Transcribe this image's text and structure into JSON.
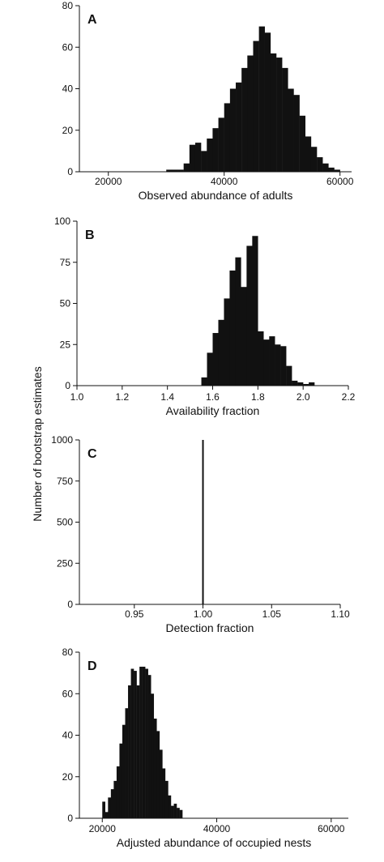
{
  "figure": {
    "shared_ylabel": "Number of bootstrap estimates"
  },
  "chart_data": [
    {
      "type": "bar",
      "panel_label": "A",
      "xlabel": "Observed abundance of adults",
      "xlim": [
        15000,
        62000
      ],
      "ylim": [
        0,
        80
      ],
      "xticks": [
        20000,
        40000,
        60000
      ],
      "yticks": [
        0,
        20,
        40,
        60,
        80
      ],
      "bin_width": 1000,
      "bins": [
        [
          30000,
          1
        ],
        [
          31000,
          1
        ],
        [
          32000,
          1
        ],
        [
          33000,
          4
        ],
        [
          34000,
          13
        ],
        [
          35000,
          14
        ],
        [
          36000,
          10
        ],
        [
          37000,
          16
        ],
        [
          38000,
          21
        ],
        [
          39000,
          26
        ],
        [
          40000,
          33
        ],
        [
          41000,
          40
        ],
        [
          42000,
          43
        ],
        [
          43000,
          50
        ],
        [
          44000,
          56
        ],
        [
          45000,
          63
        ],
        [
          46000,
          70
        ],
        [
          47000,
          67
        ],
        [
          48000,
          57
        ],
        [
          49000,
          55
        ],
        [
          50000,
          50
        ],
        [
          51000,
          40
        ],
        [
          52000,
          37
        ],
        [
          53000,
          27
        ],
        [
          54000,
          17
        ],
        [
          55000,
          12
        ],
        [
          56000,
          7
        ],
        [
          57000,
          4
        ],
        [
          58000,
          2
        ],
        [
          59000,
          1
        ]
      ]
    },
    {
      "type": "bar",
      "panel_label": "B",
      "xlabel": "Availability fraction",
      "xlim": [
        1.0,
        2.2
      ],
      "ylim": [
        0,
        100
      ],
      "xticks": [
        "1.0",
        "1.2",
        "1.4",
        "1.6",
        "1.8",
        "2.0",
        "2.2"
      ],
      "yticks": [
        0,
        25,
        50,
        75,
        100
      ],
      "bin_width": 0.025,
      "bins": [
        [
          1.55,
          5
        ],
        [
          1.575,
          20
        ],
        [
          1.6,
          32
        ],
        [
          1.625,
          40
        ],
        [
          1.65,
          53
        ],
        [
          1.675,
          70
        ],
        [
          1.7,
          78
        ],
        [
          1.725,
          60
        ],
        [
          1.75,
          85
        ],
        [
          1.775,
          91
        ],
        [
          1.8,
          33
        ],
        [
          1.825,
          28
        ],
        [
          1.85,
          30
        ],
        [
          1.875,
          25
        ],
        [
          1.9,
          24
        ],
        [
          1.925,
          12
        ],
        [
          1.95,
          3
        ],
        [
          1.975,
          2
        ],
        [
          2.0,
          1
        ],
        [
          2.025,
          2
        ]
      ]
    },
    {
      "type": "bar",
      "panel_label": "C",
      "xlabel": "Detection fraction",
      "xlim": [
        0.91,
        1.1
      ],
      "ylim": [
        0,
        1000
      ],
      "xticks": [
        "0.95",
        "1.00",
        "1.05",
        "1.10"
      ],
      "yticks": [
        0,
        250,
        500,
        750,
        1000
      ],
      "bars": [
        {
          "x": 1.0,
          "value": 1000
        }
      ]
    },
    {
      "type": "bar",
      "panel_label": "D",
      "xlabel": "Adjusted abundance of occupied nests",
      "xlim": [
        16000,
        63000
      ],
      "ylim": [
        0,
        80
      ],
      "xticks": [
        20000,
        40000,
        60000
      ],
      "yticks": [
        0,
        20,
        40,
        60,
        80
      ],
      "bin_width": 500,
      "bins": [
        [
          20000,
          8
        ],
        [
          20500,
          3
        ],
        [
          21000,
          10
        ],
        [
          21500,
          14
        ],
        [
          22000,
          18
        ],
        [
          22500,
          25
        ],
        [
          23000,
          36
        ],
        [
          23500,
          45
        ],
        [
          24000,
          53
        ],
        [
          24500,
          64
        ],
        [
          25000,
          72
        ],
        [
          25500,
          71
        ],
        [
          26000,
          64
        ],
        [
          26500,
          73
        ],
        [
          27000,
          73
        ],
        [
          27500,
          72
        ],
        [
          28000,
          69
        ],
        [
          28500,
          60
        ],
        [
          29000,
          48
        ],
        [
          29500,
          42
        ],
        [
          30000,
          33
        ],
        [
          30500,
          24
        ],
        [
          31000,
          18
        ],
        [
          31500,
          11
        ],
        [
          32000,
          6
        ],
        [
          32500,
          7
        ],
        [
          33000,
          5
        ],
        [
          33500,
          4
        ]
      ]
    }
  ]
}
